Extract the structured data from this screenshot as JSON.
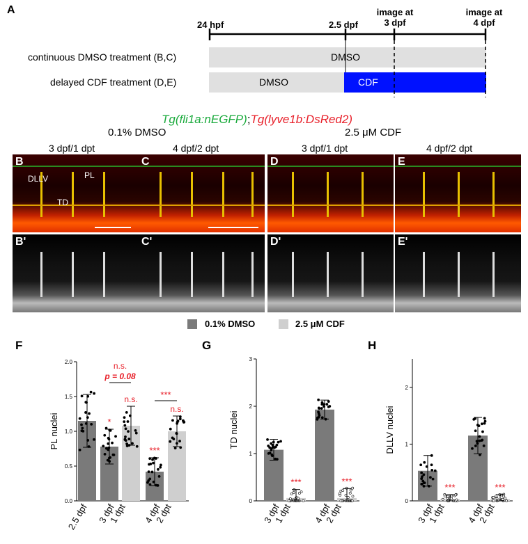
{
  "panelA": {
    "letter": "A",
    "times": [
      "24 hpf",
      "2.5 dpf"
    ],
    "image_labels": [
      "image at\n3 dpf",
      "image at\n4 dpf"
    ],
    "image_3dpf": "image at",
    "image_3dpf_b": "3 dpf",
    "image_4dpf": "image at",
    "image_4dpf_b": "4 dpf",
    "rows": [
      {
        "label": "continuous DMSO treatment (B,C)",
        "bars": [
          {
            "text": "DMSO",
            "color": "#e0e0e0"
          }
        ]
      },
      {
        "label": "delayed CDF treatment (D,E)",
        "bars": [
          {
            "text": "DMSO",
            "color": "#e0e0e0"
          },
          {
            "text": "CDF",
            "color": "#0011ff"
          }
        ]
      }
    ]
  },
  "transgene": {
    "green": "Tg(fli1a:nEGFP)",
    "sep": ";",
    "red": "Tg(lyve1b:DsRed2)",
    "green_color": "#1aaa3c",
    "red_color": "#e8202a"
  },
  "conditions": {
    "dmso": "0.1% DMSO",
    "cdf": "2.5 μM CDF"
  },
  "panels": {
    "B": {
      "letter": "B",
      "header": "3 dpf/1 dpt",
      "letter2": "B'"
    },
    "C": {
      "letter": "C",
      "header": "4 dpf/2 dpt",
      "letter2": "C'"
    },
    "D": {
      "letter": "D",
      "header": "3 dpf/1 dpt",
      "letter2": "D'"
    },
    "E": {
      "letter": "E",
      "header": "4 dpf/2 dpt",
      "letter2": "E'"
    },
    "annotations": {
      "dllv": "DLLV",
      "pl": "PL",
      "td": "TD"
    }
  },
  "legend": {
    "dmso": "0.1% DMSO",
    "cdf": "2.5 μM CDF",
    "dmso_color": "#7a7a7a",
    "cdf_color": "#cfcfcf"
  },
  "chart_data": [
    {
      "panel": "F",
      "type": "bar",
      "ylabel": "PL nuclei",
      "ylim": [
        0,
        2.0
      ],
      "yticks": [
        "0.0",
        "0.5",
        "1.0",
        "1.5",
        "2.0"
      ],
      "categories": [
        "2.5 dpf",
        "3 dpf\n1 dpt",
        "3 dpf\n1 dpt",
        "4 dpf\n2 dpt",
        "4 dpf\n2 dpt"
      ],
      "xlabels": [
        [
          "2.5 dpf"
        ],
        [
          "3 dpf",
          "1 dpt"
        ],
        [
          "4 dpf",
          "2 dpt"
        ]
      ],
      "series": [
        {
          "name": "0.1% DMSO",
          "values": [
            1.15,
            0.78,
            null,
            0.42,
            null
          ]
        },
        {
          "name": "2.5 μM CDF",
          "values": [
            null,
            null,
            1.08,
            null,
            1.0
          ]
        }
      ],
      "errors": [
        0.38,
        0.25,
        0.28,
        0.2,
        0.22
      ],
      "significance": [
        "",
        "*",
        "n.s.",
        "***",
        "n.s."
      ],
      "brackets": [
        {
          "text": "n.s.",
          "text2": "p = 0.08",
          "from": 1,
          "to": 2
        },
        {
          "text": "***",
          "from": 3,
          "to": 4
        }
      ]
    },
    {
      "panel": "G",
      "type": "bar",
      "ylabel": "TD nuclei",
      "ylim": [
        0,
        3
      ],
      "yticks": [
        "0",
        "1",
        "2",
        "3"
      ],
      "xlabels": [
        [
          "3 dpf",
          "1 dpt"
        ],
        [
          "4 dpf",
          "2 dpt"
        ]
      ],
      "series": [
        {
          "name": "0.1% DMSO",
          "values": [
            1.08,
            null,
            1.93,
            null
          ]
        },
        {
          "name": "2.5 μM CDF",
          "values": [
            null,
            0.06,
            null,
            0.06
          ]
        }
      ],
      "errors": [
        0.22,
        0.18,
        0.2,
        0.2
      ],
      "significance": [
        "",
        "***",
        "",
        "***"
      ]
    },
    {
      "panel": "H",
      "type": "bar",
      "ylabel": "DLLV  nuclei",
      "ylim": [
        0,
        2.5
      ],
      "yticks": [
        "0",
        "1",
        "2"
      ],
      "xlabels": [
        [
          "3 dpf",
          "1 dpt"
        ],
        [
          "4 dpf",
          "2 dpt"
        ]
      ],
      "series": [
        {
          "name": "0.1% DMSO",
          "values": [
            0.53,
            null,
            1.15,
            null
          ]
        },
        {
          "name": "2.5 μM CDF",
          "values": [
            null,
            0.03,
            null,
            0.03
          ]
        }
      ],
      "errors": [
        0.27,
        0.08,
        0.32,
        0.08
      ],
      "significance": [
        "",
        "***",
        "",
        "***"
      ]
    }
  ]
}
